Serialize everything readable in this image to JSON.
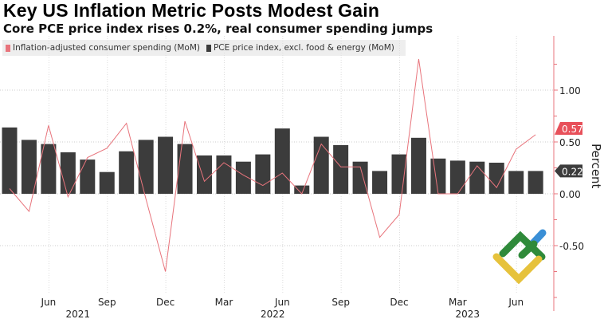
{
  "chart_data": {
    "type": "bar",
    "title": "Key US Inflation Metric Posts Modest Gain",
    "subtitle": "Core PCE price index rises 0.2%, real consumer spending jumps",
    "ylabel": "Percent",
    "xlabel": "",
    "ylim": [
      -1.13,
      1.52
    ],
    "yticks": [
      {
        "v": 1.0,
        "label": "1.00"
      },
      {
        "v": 0.5,
        "label": "0.50"
      },
      {
        "v": 0.0,
        "label": "0.00"
      },
      {
        "v": -0.5,
        "label": "-0.50"
      }
    ],
    "grid": true,
    "legend_position": "top-left",
    "x": [
      "2021-04",
      "2021-05",
      "2021-06",
      "2021-07",
      "2021-08",
      "2021-09",
      "2021-10",
      "2021-11",
      "2021-12",
      "2022-01",
      "2022-02",
      "2022-03",
      "2022-04",
      "2022-05",
      "2022-06",
      "2022-07",
      "2022-08",
      "2022-09",
      "2022-10",
      "2022-11",
      "2022-12",
      "2023-01",
      "2023-02",
      "2023-03",
      "2023-04",
      "2023-05",
      "2023-06",
      "2023-07"
    ],
    "xticks": [
      {
        "i": 2,
        "label": "Jun"
      },
      {
        "i": 5,
        "label": "Sep"
      },
      {
        "i": 8,
        "label": "Dec"
      },
      {
        "i": 11,
        "label": "Mar"
      },
      {
        "i": 14,
        "label": "Jun"
      },
      {
        "i": 17,
        "label": "Sep"
      },
      {
        "i": 20,
        "label": "Dec"
      },
      {
        "i": 23,
        "label": "Mar"
      },
      {
        "i": 26,
        "label": "Jun"
      }
    ],
    "year_labels": [
      {
        "i": 4,
        "label": "2021"
      },
      {
        "i": 14,
        "label": "2022"
      },
      {
        "i": 24,
        "label": "2023"
      }
    ],
    "series": [
      {
        "name": "Inflation-adjusted consumer spending (MoM)",
        "type": "line",
        "color": "#e8747c",
        "values": [
          0.05,
          -0.17,
          0.66,
          -0.03,
          0.35,
          0.44,
          0.68,
          -0.05,
          -0.75,
          0.7,
          0.12,
          0.3,
          0.18,
          0.08,
          0.2,
          0.0,
          0.48,
          0.26,
          0.26,
          -0.42,
          -0.2,
          1.3,
          0.0,
          0.0,
          0.27,
          0.06,
          0.43,
          0.57
        ],
        "last_label": "0.57"
      },
      {
        "name": "PCE price index, excl. food & energy (MoM)",
        "type": "bar",
        "color": "#3c3c3c",
        "values": [
          0.64,
          0.52,
          0.48,
          0.4,
          0.33,
          0.21,
          0.41,
          0.52,
          0.55,
          0.48,
          0.37,
          0.37,
          0.31,
          0.38,
          0.63,
          0.08,
          0.55,
          0.47,
          0.31,
          0.22,
          0.38,
          0.54,
          0.34,
          0.32,
          0.31,
          0.3,
          0.22,
          0.22
        ],
        "last_label": "0.22"
      }
    ]
  }
}
